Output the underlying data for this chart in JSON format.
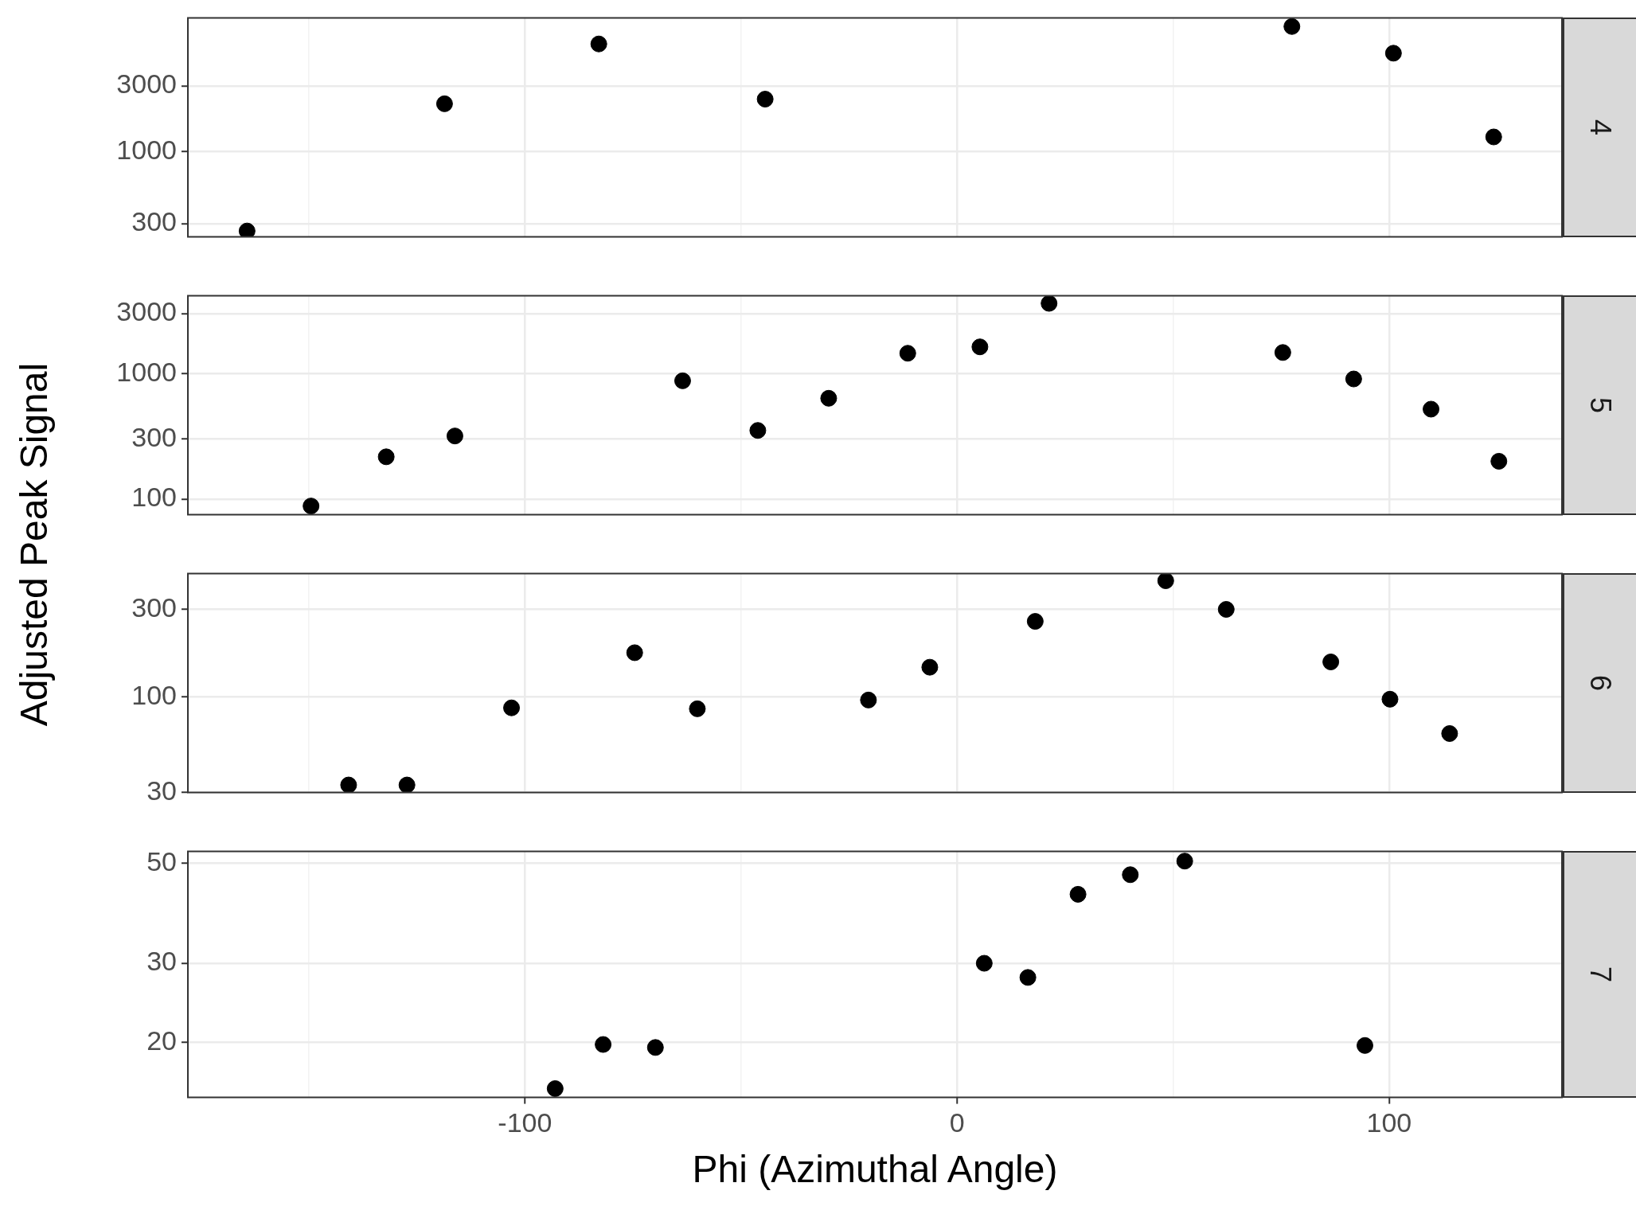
{
  "chart_data": [
    {
      "type": "scatter",
      "annotations": [
        "4"
      ],
      "ylabel": "Adjusted Peak Signal",
      "color": "#000000",
      "marker": "circle",
      "log": "y",
      "grid": true,
      "tick_labels": "y",
      "x": [
        -164.3,
        -118.6,
        -82.9,
        -44.4,
        77.5,
        101,
        124.2
      ],
      "values": [
        265,
        2230,
        6070,
        2410,
        8130,
        5200,
        1280
      ],
      "xlim": [
        -178,
        140
      ],
      "xticks": [
        {
          "value": -150,
          "label": null
        },
        -100,
        {
          "value": -50,
          "label": null
        },
        0,
        {
          "value": 50,
          "label": null
        },
        100
      ],
      "ylim": [
        240,
        9400
      ],
      "yticks": [
        300,
        1000,
        3000
      ]
    },
    {
      "type": "scatter",
      "annotations": [
        "5"
      ],
      "color": "#000000",
      "marker": "circle",
      "log": "y",
      "grid": true,
      "tick_labels": "y",
      "x": [
        -149.5,
        -132.1,
        -116.2,
        -63.5,
        -46.1,
        -29.7,
        -11.4,
        5.3,
        21.3,
        75.4,
        91.8,
        109.7,
        125.4
      ],
      "values": [
        88,
        217,
        318,
        875,
        352,
        635,
        1450,
        1630,
        3620,
        1470,
        905,
        520,
        200
      ],
      "xlim": [
        -178,
        140
      ],
      "xticks": [
        {
          "value": -150,
          "label": null
        },
        -100,
        {
          "value": -50,
          "label": null
        },
        0,
        {
          "value": 50,
          "label": null
        },
        100
      ],
      "ylim": [
        75,
        4170
      ],
      "yticks": [
        100,
        300,
        1000,
        3000
      ]
    },
    {
      "type": "scatter",
      "annotations": [
        "6"
      ],
      "color": "#000000",
      "marker": "circle",
      "log": "y",
      "grid": true,
      "tick_labels": "y",
      "x": [
        -140.8,
        -127.3,
        -103.1,
        -74.6,
        -60.1,
        -20.5,
        -6.3,
        18.1,
        48.3,
        62.3,
        86.5,
        100.2,
        114
      ],
      "values": [
        33,
        33,
        87,
        174,
        86,
        96,
        145,
        258,
        430,
        300,
        155,
        97,
        63
      ],
      "xlim": [
        -178,
        140
      ],
      "xticks": [
        {
          "value": -150,
          "label": null
        },
        -100,
        {
          "value": -50,
          "label": null
        },
        0,
        {
          "value": 50,
          "label": null
        },
        100
      ],
      "ylim": [
        30,
        471
      ],
      "yticks": [
        30,
        100,
        300
      ]
    },
    {
      "type": "scatter",
      "annotations": [
        "7"
      ],
      "xlabel": "Phi (Azimuthal Angle)",
      "color": "#000000",
      "marker": "circle",
      "log": "y",
      "grid": true,
      "x": [
        -93,
        -81.9,
        -69.8,
        6.3,
        16.4,
        28,
        40.1,
        52.7,
        94.4
      ],
      "values": [
        15.8,
        19.8,
        19.5,
        30,
        27.9,
        42.7,
        47.2,
        50.6,
        19.7
      ],
      "xlim": [
        -178,
        140
      ],
      "xticks": [
        {
          "value": -150,
          "label": null
        },
        -100,
        {
          "value": -50,
          "label": null
        },
        0,
        {
          "value": 50,
          "label": null
        },
        100
      ],
      "ylim": [
        15.1,
        53.2
      ],
      "yticks": [
        20,
        30,
        50
      ]
    }
  ]
}
